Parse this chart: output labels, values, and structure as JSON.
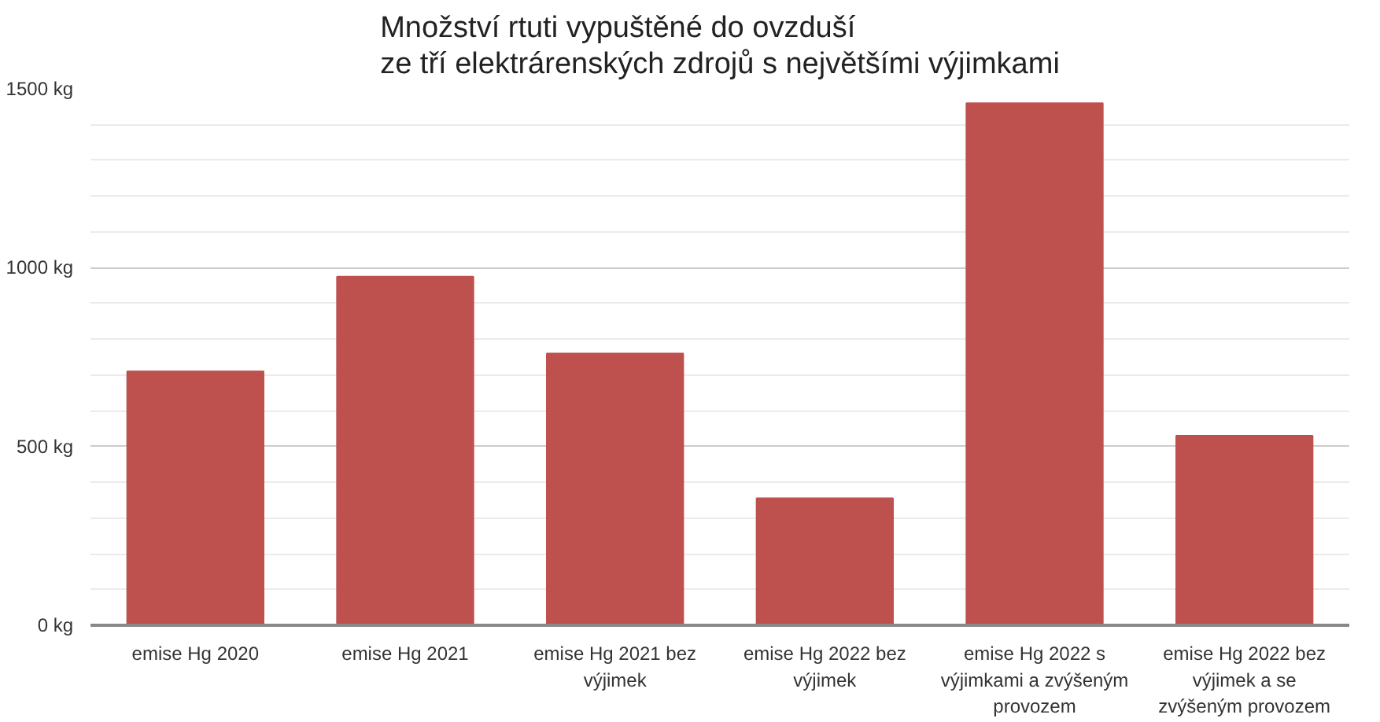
{
  "chart_data": {
    "type": "bar",
    "title": "Množství rtuti vypuštěné do ovzduší\nze tří elektrárenských zdrojů s největšími výjimkami",
    "categories": [
      "emise Hg 2020",
      "emise Hg 2021",
      "emise Hg 2021 bez výjimek",
      "emise Hg 2022 bez výjimek",
      "emise Hg 2022 s výjimkami a zvýšeným provozem",
      "emise Hg 2022 bez výjimek a se zvýšeným provozem"
    ],
    "values": [
      710,
      975,
      760,
      355,
      1460,
      530
    ],
    "color": "#be504e",
    "ylim": [
      0,
      1500
    ],
    "yticks": [
      {
        "value": 0,
        "label": "0 kg"
      },
      {
        "value": 500,
        "label": "500 kg"
      },
      {
        "value": 1000,
        "label": "1000 kg"
      },
      {
        "value": 1500,
        "label": "1500 kg"
      }
    ],
    "grid": "y"
  }
}
